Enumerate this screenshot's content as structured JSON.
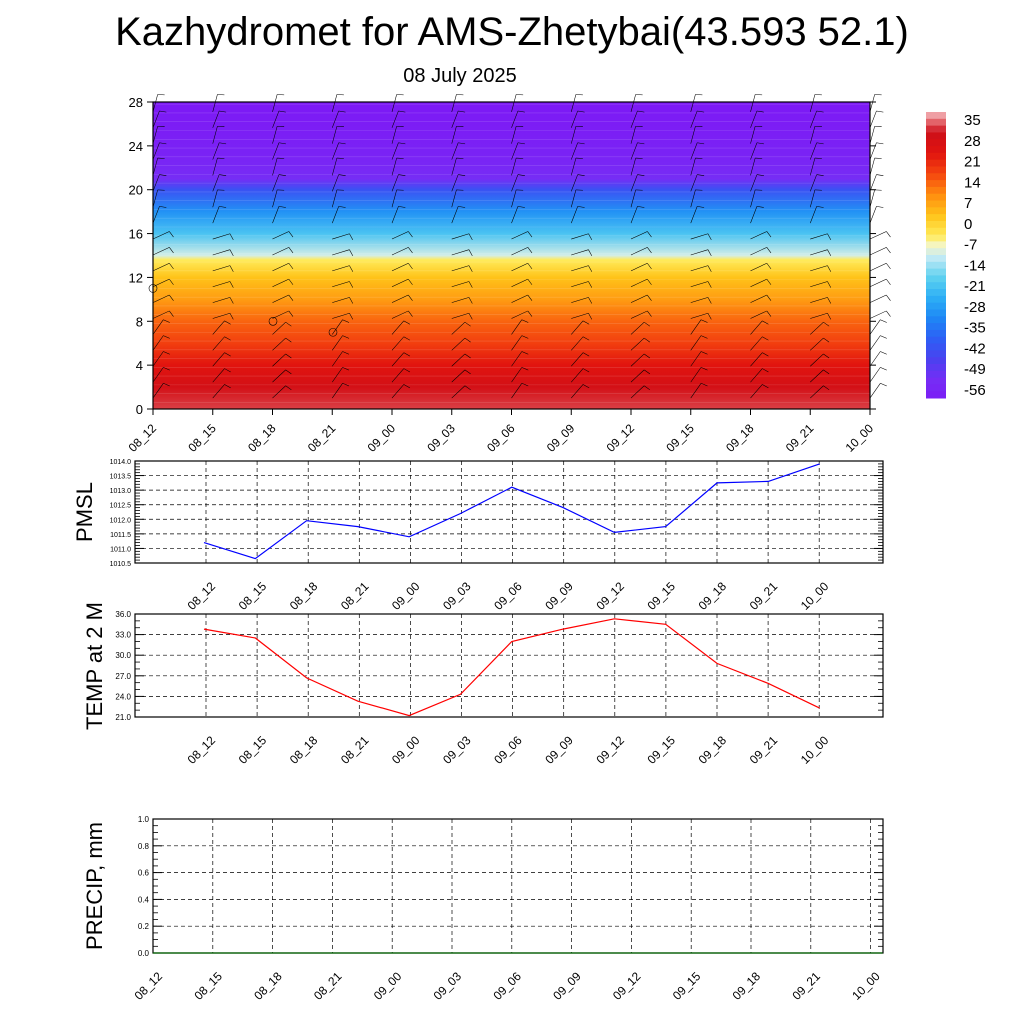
{
  "header": {
    "title": "Kazhydromet for AMS-Zhetybai(43.593 52.1)",
    "date": "08 July 2025"
  },
  "colors": {
    "pmsl_line": "#0000ff",
    "temp_line": "#ff0000",
    "precip_line": "#006400",
    "grid": "#000000"
  },
  "chart_data": [
    {
      "type": "heatmap",
      "ylim": [
        0,
        28
      ],
      "yticks": [
        0,
        4,
        8,
        12,
        16,
        20,
        24,
        28
      ],
      "categories": [
        "08_12",
        "08_15",
        "08_18",
        "08_21",
        "09_00",
        "09_03",
        "09_06",
        "09_09",
        "09_12",
        "09_15",
        "09_18",
        "09_21",
        "10_00"
      ],
      "color_scale": {
        "labels": [
          "35",
          "28",
          "21",
          "14",
          "7",
          "0",
          "-7",
          "-14",
          "-21",
          "-28",
          "-35",
          "-42",
          "-49",
          "-56"
        ],
        "min": -56,
        "max": 35
      },
      "profile": [
        {
          "level": 0,
          "value": 30
        },
        {
          "level": 2,
          "value": 26
        },
        {
          "level": 4,
          "value": 21
        },
        {
          "level": 6,
          "value": 15
        },
        {
          "level": 8,
          "value": 11
        },
        {
          "level": 10,
          "value": 5
        },
        {
          "level": 12,
          "value": 0
        },
        {
          "level": 13.6,
          "value": -7
        },
        {
          "level": 14,
          "value": -13
        },
        {
          "level": 16,
          "value": -24
        },
        {
          "level": 18,
          "value": -33
        },
        {
          "level": 20,
          "value": -45
        },
        {
          "level": 21,
          "value": -56
        },
        {
          "level": 23,
          "value": -60
        },
        {
          "level": 28,
          "value": -64
        }
      ],
      "wind_barbs": true
    },
    {
      "type": "line",
      "ylabel": "PMSL",
      "ylim": [
        1010.5,
        1014.0
      ],
      "yticks": [
        "1010.5",
        "1011.0",
        "1011.5",
        "1012.0",
        "1012.5",
        "1013.0",
        "1013.5",
        "1014.0"
      ],
      "categories": [
        "08_12",
        "08_15",
        "08_18",
        "08_21",
        "09_00",
        "09_03",
        "09_06",
        "09_09",
        "09_12",
        "09_15",
        "09_18",
        "09_21",
        "10_00"
      ],
      "values": [
        1011.2,
        1010.65,
        1011.95,
        1011.75,
        1011.4,
        1012.2,
        1013.1,
        1012.4,
        1011.55,
        1011.75,
        1013.25,
        1013.3,
        1013.9
      ]
    },
    {
      "type": "line",
      "ylabel": "TEMP at 2 M",
      "ylim": [
        21.0,
        36.0
      ],
      "yticks": [
        "21.0",
        "24.0",
        "27.0",
        "30.0",
        "33.0",
        "36.0"
      ],
      "categories": [
        "08_12",
        "08_15",
        "08_18",
        "08_21",
        "09_00",
        "09_03",
        "09_06",
        "09_09",
        "09_12",
        "09_15",
        "09_18",
        "09_21",
        "10_00"
      ],
      "values": [
        33.8,
        32.5,
        26.7,
        23.3,
        21.2,
        24.3,
        32.0,
        33.8,
        35.3,
        34.5,
        28.8,
        25.9,
        22.3
      ]
    },
    {
      "type": "line",
      "ylabel": "PRECIP, mm",
      "ylim": [
        0.0,
        1.0
      ],
      "yticks": [
        "0.0",
        "0.2",
        "0.4",
        "0.6",
        "0.8",
        "1.0"
      ],
      "categories": [
        "08_12",
        "08_15",
        "08_18",
        "08_21",
        "09_00",
        "09_03",
        "09_06",
        "09_09",
        "09_12",
        "09_15",
        "09_18",
        "09_21",
        "10_00"
      ],
      "values": [
        0,
        0,
        0,
        0,
        0,
        0,
        0,
        0,
        0,
        0,
        0,
        0,
        0
      ]
    }
  ]
}
